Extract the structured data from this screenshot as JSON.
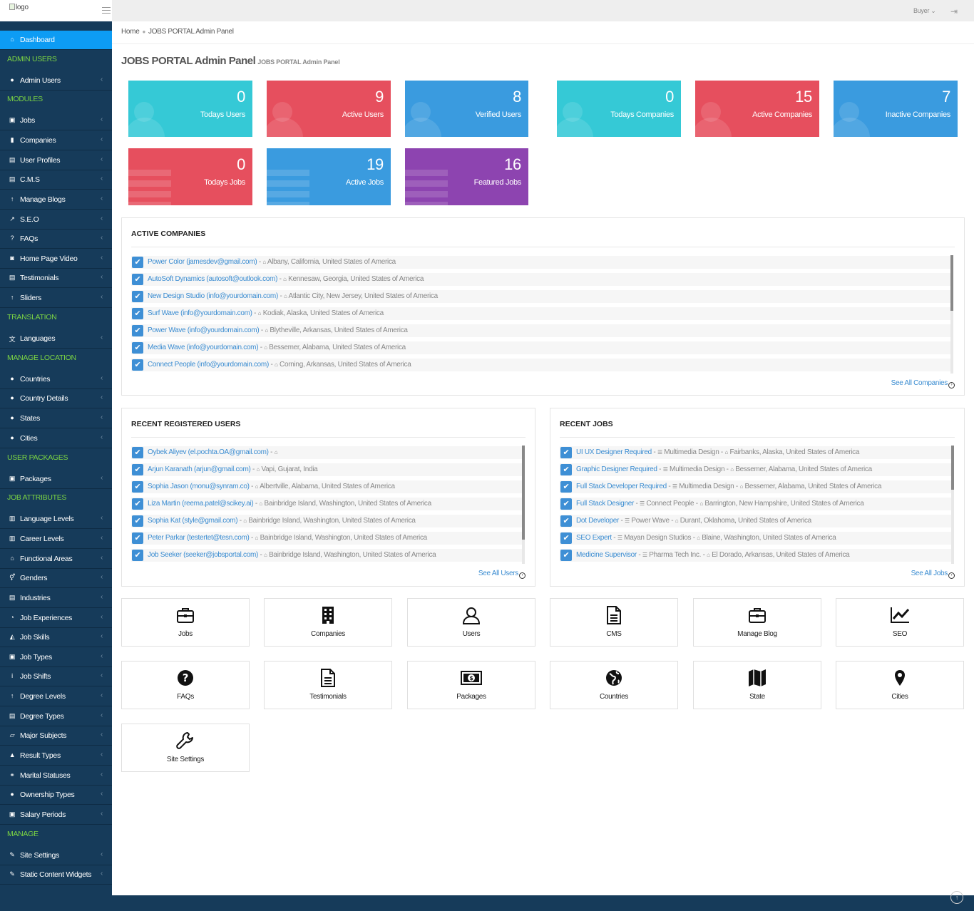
{
  "topbar": {
    "logo_alt": "logo",
    "user_label": "Buyer",
    "user_chevron": "⌄",
    "logout_icon": "⇥"
  },
  "sidebar": {
    "items": [
      {
        "type": "item",
        "label": "Dashboard",
        "icon": "home-icon",
        "glyph": "⌂",
        "active": true
      },
      {
        "type": "head",
        "label": "ADMIN USERS"
      },
      {
        "type": "item",
        "label": "Admin Users",
        "icon": "user-icon",
        "glyph": "●"
      },
      {
        "type": "head",
        "label": "MODULES"
      },
      {
        "type": "item",
        "label": "Jobs",
        "icon": "briefcase-icon",
        "glyph": "▣"
      },
      {
        "type": "item",
        "label": "Companies",
        "icon": "building-icon",
        "glyph": "▮"
      },
      {
        "type": "item",
        "label": "User Profiles",
        "icon": "file-icon",
        "glyph": "▤"
      },
      {
        "type": "item",
        "label": "C.M.S",
        "icon": "file-text-icon",
        "glyph": "▤"
      },
      {
        "type": "item",
        "label": "Manage Blogs",
        "icon": "level-up-icon",
        "glyph": "↑"
      },
      {
        "type": "item",
        "label": "S.E.O",
        "icon": "line-chart-icon",
        "glyph": "↗"
      },
      {
        "type": "item",
        "label": "FAQs",
        "icon": "question-icon",
        "glyph": "?"
      },
      {
        "type": "item",
        "label": "Home Page Video",
        "icon": "camera-icon",
        "glyph": "◙"
      },
      {
        "type": "item",
        "label": "Testimonials",
        "icon": "file-text-icon",
        "glyph": "▤"
      },
      {
        "type": "item",
        "label": "Sliders",
        "icon": "level-up-icon",
        "glyph": "↑"
      },
      {
        "type": "head",
        "label": "TRANSLATION"
      },
      {
        "type": "item",
        "label": "Languages",
        "icon": "language-icon",
        "glyph": "文"
      },
      {
        "type": "head",
        "label": "MANAGE LOCATION"
      },
      {
        "type": "item",
        "label": "Countries",
        "icon": "globe-icon",
        "glyph": "●"
      },
      {
        "type": "item",
        "label": "Country Details",
        "icon": "globe-icon",
        "glyph": "●"
      },
      {
        "type": "item",
        "label": "States",
        "icon": "globe-icon",
        "glyph": "●"
      },
      {
        "type": "item",
        "label": "Cities",
        "icon": "globe-icon",
        "glyph": "●"
      },
      {
        "type": "head",
        "label": "USER PACKAGES"
      },
      {
        "type": "item",
        "label": "Packages",
        "icon": "money-icon",
        "glyph": "▣"
      },
      {
        "type": "head",
        "label": "JOB ATTRIBUTES"
      },
      {
        "type": "item",
        "label": "Language Levels",
        "icon": "bar-chart-icon",
        "glyph": "▥"
      },
      {
        "type": "item",
        "label": "Career Levels",
        "icon": "bar-chart-icon",
        "glyph": "▥"
      },
      {
        "type": "item",
        "label": "Functional Areas",
        "icon": "bank-icon",
        "glyph": "⌂"
      },
      {
        "type": "item",
        "label": "Genders",
        "icon": "venus-mars-icon",
        "glyph": "⚥"
      },
      {
        "type": "item",
        "label": "Industries",
        "icon": "industry-icon",
        "glyph": "▤"
      },
      {
        "type": "item",
        "label": "Job Experiences",
        "icon": "pie-chart-icon",
        "glyph": "◔"
      },
      {
        "type": "item",
        "label": "Job Skills",
        "icon": "area-chart-icon",
        "glyph": "◭"
      },
      {
        "type": "item",
        "label": "Job Types",
        "icon": "briefcase-icon",
        "glyph": "▣"
      },
      {
        "type": "item",
        "label": "Job Shifts",
        "icon": "info-icon",
        "glyph": "i"
      },
      {
        "type": "item",
        "label": "Degree Levels",
        "icon": "level-up-icon",
        "glyph": "↑"
      },
      {
        "type": "item",
        "label": "Degree Types",
        "icon": "file-text-icon",
        "glyph": "▤"
      },
      {
        "type": "item",
        "label": "Major Subjects",
        "icon": "book-icon",
        "glyph": "▱"
      },
      {
        "type": "item",
        "label": "Result Types",
        "icon": "graduation-cap-icon",
        "glyph": "▲"
      },
      {
        "type": "item",
        "label": "Marital Statuses",
        "icon": "genderless-icon",
        "glyph": "⚭"
      },
      {
        "type": "item",
        "label": "Ownership Types",
        "icon": "user-icon",
        "glyph": "●"
      },
      {
        "type": "item",
        "label": "Salary Periods",
        "icon": "money-icon",
        "glyph": "▣"
      },
      {
        "type": "head",
        "label": "MANAGE"
      },
      {
        "type": "item",
        "label": "Site Settings",
        "icon": "wrench-icon",
        "glyph": "✎"
      },
      {
        "type": "item",
        "label": "Static Content Widgets",
        "icon": "wrench-icon",
        "glyph": "✎"
      }
    ],
    "chevron": "‹"
  },
  "breadcrumb": {
    "home": "Home",
    "separator": "●",
    "current": "JOBS PORTAL Admin Panel"
  },
  "page": {
    "title": "JOBS PORTAL Admin Panel",
    "subtitle": "JOBS PORTAL Admin Panel"
  },
  "stats": [
    {
      "value": 0,
      "label": "Todays Users",
      "color": "#35c9d6",
      "kind": "user"
    },
    {
      "value": 9,
      "label": "Active Users",
      "color": "#e64f5e",
      "kind": "user"
    },
    {
      "value": 8,
      "label": "Verified Users",
      "color": "#3a9bdf",
      "kind": "user"
    },
    {
      "value": 0,
      "label": "Todays Companies",
      "color": "#35c9d6",
      "kind": "user"
    },
    {
      "value": 15,
      "label": "Active Companies",
      "color": "#e64f5e",
      "kind": "user"
    },
    {
      "value": 7,
      "label": "Inactive Companies",
      "color": "#3a9bdf",
      "kind": "user"
    },
    {
      "value": 0,
      "label": "Todays Jobs",
      "color": "#e64f5e",
      "kind": "list"
    },
    {
      "value": 19,
      "label": "Active Jobs",
      "color": "#3a9bdf",
      "kind": "list"
    },
    {
      "value": 16,
      "label": "Featured Jobs",
      "color": "#8d44b0",
      "kind": "list"
    }
  ],
  "active_companies": {
    "title": "ACTIVE COMPANIES",
    "see_all": "See All Companies",
    "rows": [
      {
        "name": "Power Color (jamesdev@gmail.com)",
        "location": "Albany, California, United States of America"
      },
      {
        "name": "AutoSoft Dynamics (autosoft@outlook.com)",
        "location": "Kennesaw, Georgia, United States of America"
      },
      {
        "name": "New Design Studio (info@yourdomain.com)",
        "location": "Atlantic City, New Jersey, United States of America"
      },
      {
        "name": "Surf Wave (info@yourdomain.com)",
        "location": "Kodiak, Alaska, United States of America"
      },
      {
        "name": "Power Wave (info@yourdomain.com)",
        "location": "Blytheville, Arkansas, United States of America"
      },
      {
        "name": "Media Wave (info@yourdomain.com)",
        "location": "Bessemer, Alabama, United States of America"
      },
      {
        "name": "Connect People (info@yourdomain.com)",
        "location": "Corning, Arkansas, United States of America"
      }
    ]
  },
  "recent_users": {
    "title": "RECENT REGISTERED USERS",
    "see_all": "See All Users",
    "rows": [
      {
        "name": "Oybek Aliyev (el.pochta.OA@gmail.com)",
        "location": ""
      },
      {
        "name": "Arjun Karanath (arjun@gmail.com)",
        "location": "Vapi, Gujarat, India"
      },
      {
        "name": "Sophia Jason (monu@synram.co)",
        "location": "Albertville, Alabama, United States of America"
      },
      {
        "name": "Liza Martin (reema.patel@scikey.ai)",
        "location": "Bainbridge Island, Washington, United States of America"
      },
      {
        "name": "Sophia Kat (style@gmail.com)",
        "location": "Bainbridge Island, Washington, United States of America"
      },
      {
        "name": "Peter Parkar (testertet@tesn.com)",
        "location": "Bainbridge Island, Washington, United States of America"
      },
      {
        "name": "Job Seeker (seeker@jobsportal.com)",
        "location": "Bainbridge Island, Washington, United States of America"
      }
    ]
  },
  "recent_jobs": {
    "title": "RECENT JOBS",
    "see_all": "See All Jobs",
    "rows": [
      {
        "name": "UI UX Designer Required",
        "company": "Multimedia Design",
        "location": "Fairbanks, Alaska, United States of America"
      },
      {
        "name": "Graphic Designer Required",
        "company": "Multimedia Design",
        "location": "Bessemer, Alabama, United States of America"
      },
      {
        "name": "Full Stack Developer Required",
        "company": "Multimedia Design",
        "location": "Bessemer, Alabama, United States of America"
      },
      {
        "name": "Full Stack Designer",
        "company": "Connect People",
        "location": "Barrington, New Hampshire, United States of America"
      },
      {
        "name": "Dot Developer",
        "company": "Power Wave",
        "location": "Durant, Oklahoma, United States of America"
      },
      {
        "name": "SEO Expert",
        "company": "Mayan Design Studios",
        "location": "Blaine, Washington, United States of America"
      },
      {
        "name": "Medicine Supervisor",
        "company": "Pharma Tech Inc.",
        "location": "El Dorado, Arkansas, United States of America"
      }
    ]
  },
  "tiles": [
    {
      "label": "Jobs",
      "icon": "briefcase-icon"
    },
    {
      "label": "Companies",
      "icon": "building-icon"
    },
    {
      "label": "Users",
      "icon": "user-icon"
    },
    {
      "label": "CMS",
      "icon": "file-text-icon"
    },
    {
      "label": "Manage Blog",
      "icon": "briefcase-icon"
    },
    {
      "label": "SEO",
      "icon": "line-chart-icon"
    },
    {
      "label": "FAQs",
      "icon": "question-circle-icon"
    },
    {
      "label": "Testimonials",
      "icon": "file-text-icon"
    },
    {
      "label": "Packages",
      "icon": "money-icon"
    },
    {
      "label": "Countries",
      "icon": "globe-icon"
    },
    {
      "label": "State",
      "icon": "map-icon"
    },
    {
      "label": "Cities",
      "icon": "map-marker-icon"
    },
    {
      "label": "Site Settings",
      "icon": "wrench-icon"
    }
  ],
  "list_glyphs": {
    "check": "✔",
    "home": "⌂",
    "list": "☰",
    "dash": " - "
  },
  "colors": {
    "sidebar": "#163b5a",
    "active": "#0d9cf4",
    "section_head": "#7bd443",
    "link": "#3a8cd1",
    "check": "#3e8fd5"
  }
}
